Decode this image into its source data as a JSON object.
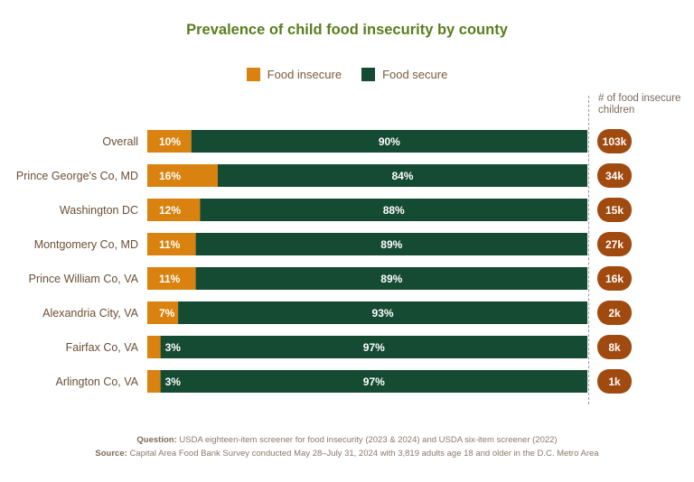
{
  "chart_data": {
    "type": "bar",
    "orientation": "horizontal",
    "stacked": true,
    "title": "Prevalence of child food insecurity by county",
    "categories": [
      "Overall",
      "Prince George's Co, MD",
      "Washington DC",
      "Montgomery Co, MD",
      "Prince William Co, VA",
      "Alexandria City, VA",
      "Fairfax Co, VA",
      "Arlington Co, VA"
    ],
    "series": [
      {
        "name": "Food insecure",
        "color": "#d9820f",
        "values": [
          10,
          16,
          12,
          11,
          11,
          7,
          3,
          3
        ],
        "labels": [
          "10%",
          "16%",
          "12%",
          "11%",
          "11%",
          "7%",
          "3%",
          "3%"
        ]
      },
      {
        "name": "Food secure",
        "color": "#154a33",
        "values": [
          90,
          84,
          88,
          89,
          89,
          93,
          97,
          97
        ],
        "labels": [
          "90%",
          "84%",
          "88%",
          "89%",
          "89%",
          "93%",
          "97%",
          "97%"
        ]
      }
    ],
    "xlim": [
      0,
      100
    ],
    "counts_header": "# of food insecure children",
    "counts": [
      "103k",
      "34k",
      "15k",
      "27k",
      "16k",
      "2k",
      "8k",
      "1k"
    ],
    "count_badge_color": "#a04a10"
  },
  "footer": {
    "question_label": "Question:",
    "question_text": "USDA eighteen-item screener for food insecurity (2023 & 2024) and USDA six-item screener (2022)",
    "source_label": "Source:",
    "source_text": "Capital Area Food Bank Survey conducted May 28–July 31, 2024 with 3,819 adults age 18 and older in the D.C. Metro Area"
  }
}
